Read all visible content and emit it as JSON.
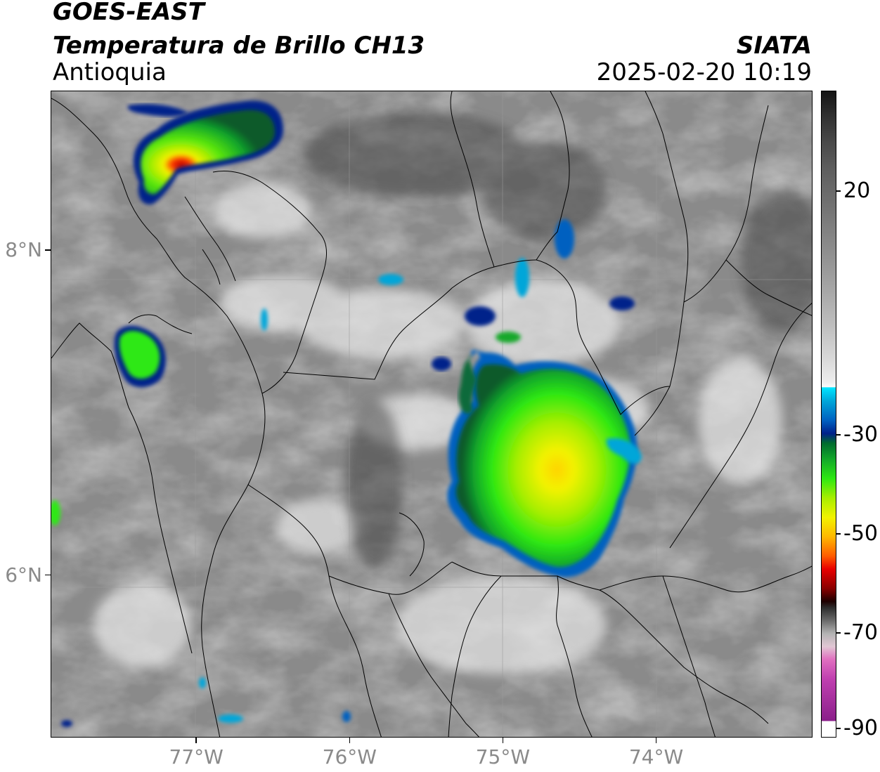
{
  "header": {
    "satellite": "GOES-EAST",
    "product": "Temperatura de Brillo CH13",
    "region": "Antioquia",
    "organization": "SIATA",
    "datetime": "2025-02-20 10:19"
  },
  "map": {
    "lon_range": [
      -77.95,
      -72.98
    ],
    "lat_range": [
      5.0,
      8.98
    ],
    "lon_ticks": [
      -77,
      -76,
      -75,
      -74
    ],
    "lat_ticks": [
      6,
      8
    ],
    "lon_tick_labels": [
      "77°W",
      "76°W",
      "75°W",
      "74°W"
    ],
    "lat_tick_labels": [
      "6°N",
      "8°N"
    ],
    "gridlines": true,
    "boundaries": "coastline and department borders"
  },
  "colorbar": {
    "tick_values": [
      20,
      -30,
      -50,
      -70,
      -90
    ],
    "tick_labels": [
      "20",
      "-30",
      "-50",
      "-70",
      "-90"
    ],
    "colors": {
      "warm": "#1a1a1a",
      "mid_gray": "#808080",
      "cool_white": "#f5f5f5",
      "cyan": "#00e5ff",
      "blue": "#00208a",
      "green": "#2ee812",
      "yellow": "#f2f200",
      "orange": "#ff8a00",
      "red": "#e80000",
      "dark": "#1e0000",
      "magenta": "#c040b0",
      "purple": "#8a1f8a"
    }
  }
}
